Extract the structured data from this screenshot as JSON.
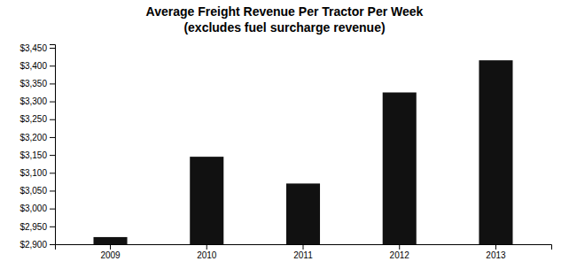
{
  "chart_data": {
    "type": "bar",
    "title": "Average Freight Revenue Per Tractor Per Week",
    "subtitle": "(excludes fuel surcharge revenue)",
    "categories": [
      "2009",
      "2010",
      "2011",
      "2012",
      "2013"
    ],
    "values": [
      2920,
      3145,
      3070,
      3325,
      3415
    ],
    "color": "#111111",
    "ylim": [
      2900,
      3460
    ],
    "yticks": [
      {
        "value": 2900,
        "label": "$2,900"
      },
      {
        "value": 2950,
        "label": "$2,950"
      },
      {
        "value": 3000,
        "label": "$3,000"
      },
      {
        "value": 3050,
        "label": "$3,050"
      },
      {
        "value": 3100,
        "label": "$3,100"
      },
      {
        "value": 3150,
        "label": "$3,150"
      },
      {
        "value": 3200,
        "label": "$3,200"
      },
      {
        "value": 3250,
        "label": "$3,250"
      },
      {
        "value": 3300,
        "label": "$3,300"
      },
      {
        "value": 3350,
        "label": "$3,350"
      },
      {
        "value": 3400,
        "label": "$3,400"
      },
      {
        "value": 3450,
        "label": "$3,450"
      }
    ],
    "grid": false
  }
}
